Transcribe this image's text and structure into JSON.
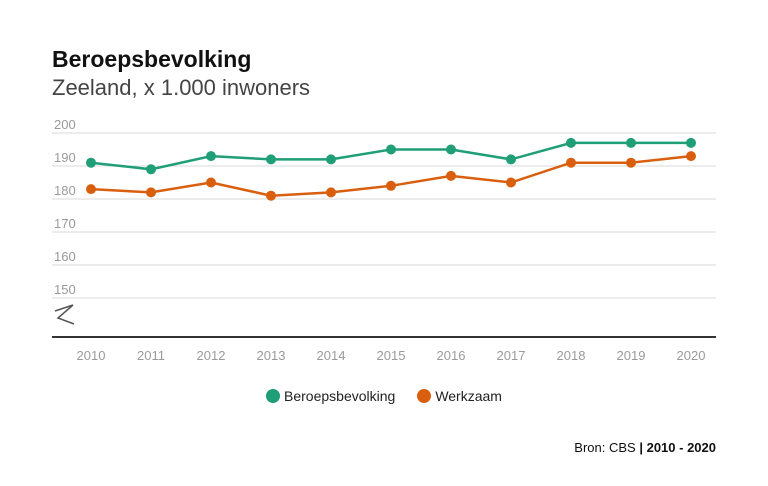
{
  "header": {
    "title": "Beroepsbevolking",
    "subtitle": "Zeeland, x 1.000 inwoners"
  },
  "legend": {
    "items": [
      {
        "label": "Beroepsbevolking",
        "color": "#1f9e77"
      },
      {
        "label": "Werkzaam",
        "color": "#d95f0e"
      }
    ]
  },
  "source": {
    "label": "Bron: CBS",
    "separator": "|",
    "period": "2010 - 2020"
  },
  "chart_data": {
    "type": "line",
    "title": "Beroepsbevolking",
    "subtitle": "Zeeland, x 1.000 inwoners",
    "xlabel": "",
    "ylabel": "",
    "x": [
      "2010",
      "2011",
      "2012",
      "2013",
      "2014",
      "2015",
      "2016",
      "2017",
      "2018",
      "2019",
      "2020"
    ],
    "ylim": [
      150,
      200
    ],
    "yticks": [
      150,
      160,
      170,
      180,
      190,
      200
    ],
    "axis_break": true,
    "grid": true,
    "legend_position": "bottom",
    "series": [
      {
        "name": "Beroepsbevolking",
        "color": "#1f9e77",
        "values": [
          191,
          189,
          193,
          192,
          192,
          195,
          195,
          192,
          197,
          197,
          197
        ]
      },
      {
        "name": "Werkzaam",
        "color": "#d95f0e",
        "values": [
          183,
          182,
          185,
          181,
          182,
          184,
          187,
          185,
          191,
          191,
          193
        ]
      }
    ]
  }
}
